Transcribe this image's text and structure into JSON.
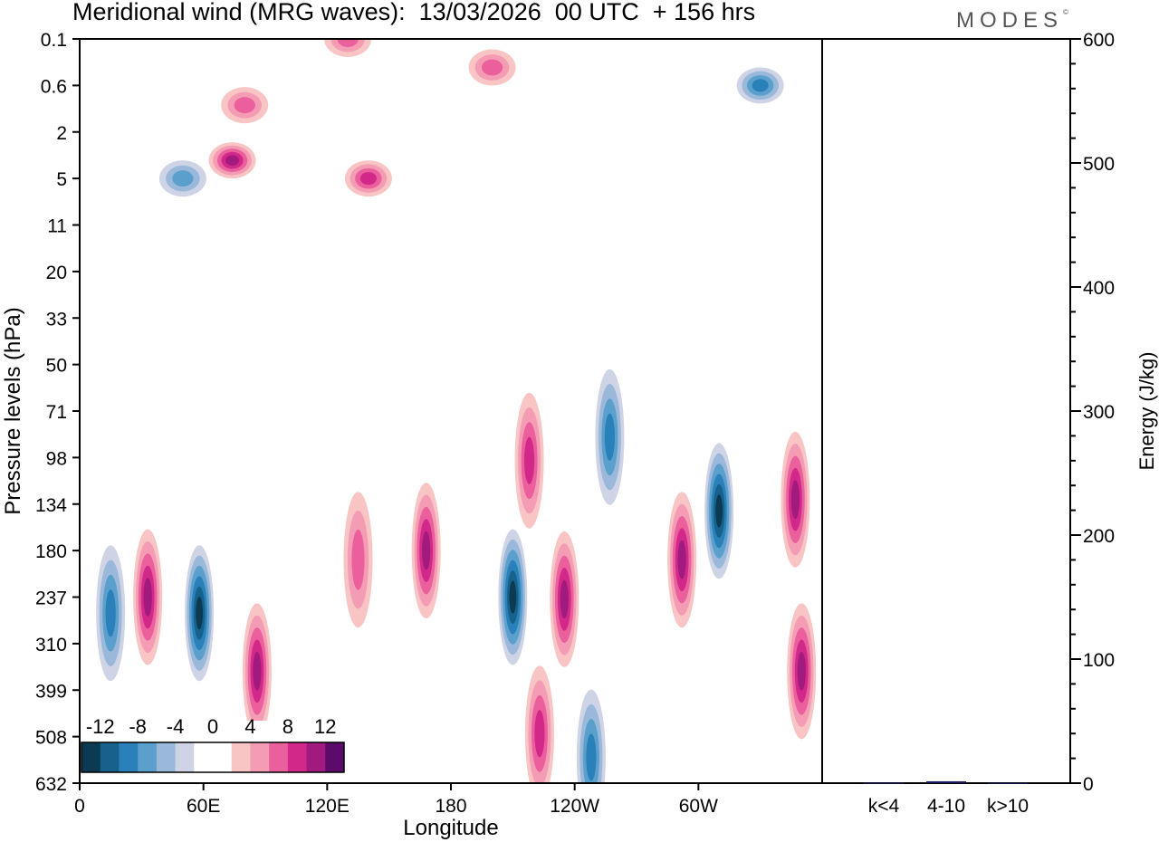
{
  "header": {
    "title": "Meridional wind (MRG waves):  13/03/2026  00 UTC  + 156 hrs",
    "brand": "MODES",
    "brand_mark": "©"
  },
  "chart_data": [
    {
      "type": "heatmap",
      "title": "Meridional wind (MRG waves):  13/03/2026  00 UTC  + 156 hrs",
      "xlabel": "Longitude",
      "ylabel": "Pressure levels (hPa)",
      "x_ticks": [
        "0",
        "60E",
        "120E",
        "180",
        "120W",
        "60W"
      ],
      "x_tick_values": [
        0,
        60,
        120,
        180,
        240,
        300
      ],
      "xlim": [
        0,
        360
      ],
      "y_ticks": [
        "0.1",
        "0.6",
        "2",
        "5",
        "11",
        "20",
        "33",
        "50",
        "71",
        "98",
        "134",
        "180",
        "237",
        "310",
        "399",
        "508",
        "632"
      ],
      "colorbar": {
        "labels": [
          "-12",
          "-8",
          "-4",
          "0",
          "4",
          "8",
          "12"
        ],
        "levels": [
          -14,
          -12,
          -10,
          -8,
          -6,
          -4,
          -2,
          0,
          2,
          4,
          6,
          8,
          10,
          12,
          14
        ],
        "colors": [
          "#0b3a52",
          "#17628c",
          "#2a80b8",
          "#5b9fcc",
          "#9ab8da",
          "#cfd3e6",
          "#ffffff",
          "#ffffff",
          "#f8c4c4",
          "#f39cb4",
          "#ea5f9c",
          "#d1288a",
          "#a11a7e",
          "#5c0a6b"
        ]
      },
      "features": [
        {
          "kind": "positive",
          "lon": 74,
          "level": 3.5,
          "peak": 9
        },
        {
          "kind": "positive",
          "lon": 140,
          "level": 5,
          "peak": 7
        },
        {
          "kind": "positive",
          "lon": 80,
          "level": 1.0,
          "peak": 6
        },
        {
          "kind": "positive",
          "lon": 130,
          "level": 0.1,
          "peak": 6
        },
        {
          "kind": "positive",
          "lon": 200,
          "level": 0.3,
          "peak": 6
        },
        {
          "kind": "negative",
          "lon": 330,
          "level": 0.6,
          "peak": -8
        },
        {
          "kind": "negative",
          "lon": 50,
          "level": 5,
          "peak": -6
        },
        {
          "kind": "negative",
          "lon": 58,
          "level": 260,
          "peak": -14
        },
        {
          "kind": "negative",
          "lon": 15,
          "level": 260,
          "peak": -8
        },
        {
          "kind": "positive",
          "lon": 33,
          "level": 237,
          "peak": 9
        },
        {
          "kind": "positive",
          "lon": 86,
          "level": 360,
          "peak": 10
        },
        {
          "kind": "positive",
          "lon": 168,
          "level": 180,
          "peak": 10
        },
        {
          "kind": "positive",
          "lon": 135,
          "level": 190,
          "peak": 6
        },
        {
          "kind": "negative",
          "lon": 210,
          "level": 237,
          "peak": -14
        },
        {
          "kind": "positive",
          "lon": 235,
          "level": 240,
          "peak": 10
        },
        {
          "kind": "positive",
          "lon": 223,
          "level": 500,
          "peak": 7
        },
        {
          "kind": "positive",
          "lon": 218,
          "level": 100,
          "peak": 7
        },
        {
          "kind": "negative",
          "lon": 257,
          "level": 85,
          "peak": -8
        },
        {
          "kind": "positive",
          "lon": 292,
          "level": 190,
          "peak": 9
        },
        {
          "kind": "negative",
          "lon": 310,
          "level": 140,
          "peak": -14
        },
        {
          "kind": "positive",
          "lon": 347,
          "level": 130,
          "peak": 10
        },
        {
          "kind": "positive",
          "lon": 350,
          "level": 360,
          "peak": 10
        },
        {
          "kind": "negative",
          "lon": 248,
          "level": 560,
          "peak": -8
        }
      ]
    },
    {
      "type": "bar",
      "categories": [
        "k<4",
        "4-10",
        "k>10"
      ],
      "values": [
        0.3,
        1.5,
        0.2
      ],
      "ylabel": "Energy (J/kg)",
      "ylim": [
        0,
        600
      ],
      "y_ticks": [
        "0",
        "100",
        "200",
        "300",
        "400",
        "500",
        "600"
      ],
      "y_tick_values": [
        0,
        100,
        200,
        300,
        400,
        500,
        600
      ],
      "bar_color": "#1a1a5e"
    }
  ]
}
